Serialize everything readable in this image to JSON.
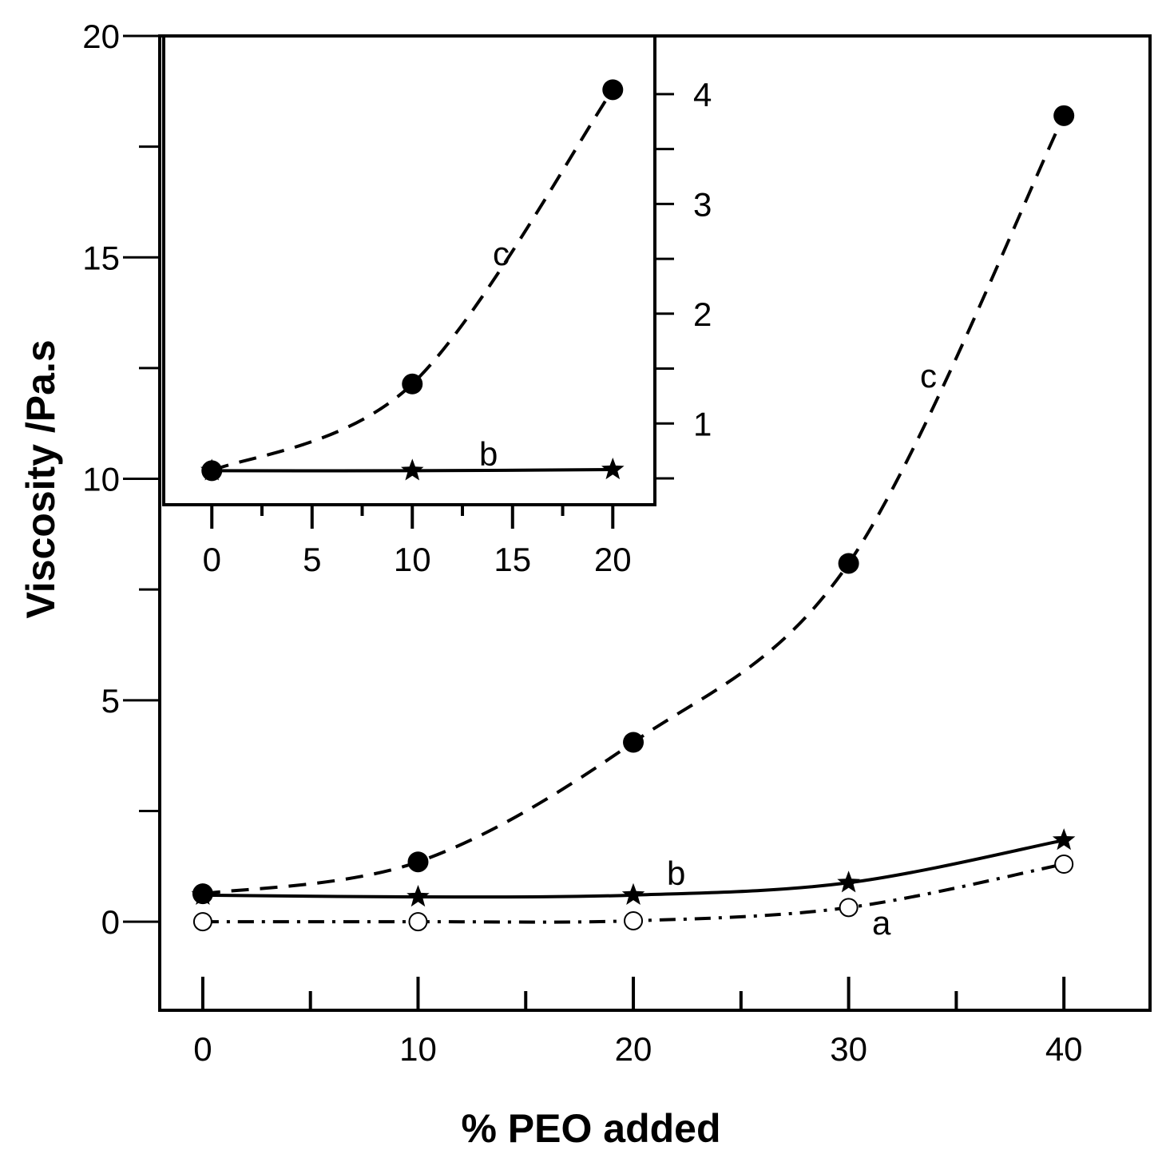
{
  "chart_data": [
    {
      "type": "line",
      "role": "main",
      "xlabel": "% PEO added",
      "ylabel": "Viscosity /Pa.s",
      "xlim": [
        -2,
        44
      ],
      "ylim": [
        -2,
        20
      ],
      "xticks": [
        0,
        10,
        20,
        30,
        40
      ],
      "xtick_labels": [
        "0",
        "10",
        "20",
        "30",
        "40"
      ],
      "yticks": [
        0,
        5,
        10,
        15,
        20
      ],
      "ytick_labels": [
        "0",
        "5",
        "10",
        "15",
        "20"
      ],
      "grid": false,
      "series": [
        {
          "name": "a",
          "marker": "open-circle",
          "line": "dash-dot",
          "x": [
            0,
            10,
            20,
            30,
            40
          ],
          "y": [
            0.0,
            0.0,
            0.02,
            0.32,
            1.3
          ]
        },
        {
          "name": "b",
          "marker": "star",
          "line": "solid",
          "x": [
            0,
            10,
            20,
            30,
            40
          ],
          "y": [
            0.6,
            0.56,
            0.6,
            0.88,
            1.84
          ]
        },
        {
          "name": "c",
          "marker": "filled-circle",
          "line": "dashed",
          "x": [
            0,
            10,
            20,
            30,
            40
          ],
          "y": [
            0.63,
            1.35,
            4.05,
            8.09,
            18.2
          ]
        }
      ],
      "annotations": [
        "a",
        "b",
        "c"
      ]
    },
    {
      "type": "line",
      "role": "inset",
      "xlim": [
        -2.4,
        22.1
      ],
      "ylim": [
        0.26,
        4.53
      ],
      "xticks": [
        0,
        5,
        10,
        15,
        20
      ],
      "xtick_labels": [
        "0",
        "5",
        "10",
        "15",
        "20"
      ],
      "yticks": [
        1,
        2,
        3,
        4
      ],
      "ytick_labels": [
        "1",
        "2",
        "3",
        "4"
      ],
      "yaxis_side": "right",
      "grid": false,
      "series": [
        {
          "name": "b",
          "marker": "star",
          "line": "solid",
          "x": [
            0,
            10,
            20
          ],
          "y": [
            0.57,
            0.57,
            0.58
          ]
        },
        {
          "name": "c",
          "marker": "filled-circle",
          "line": "dashed",
          "x": [
            0,
            10,
            20
          ],
          "y": [
            0.57,
            1.36,
            4.04
          ]
        }
      ],
      "annotations": [
        "b",
        "c"
      ]
    }
  ]
}
